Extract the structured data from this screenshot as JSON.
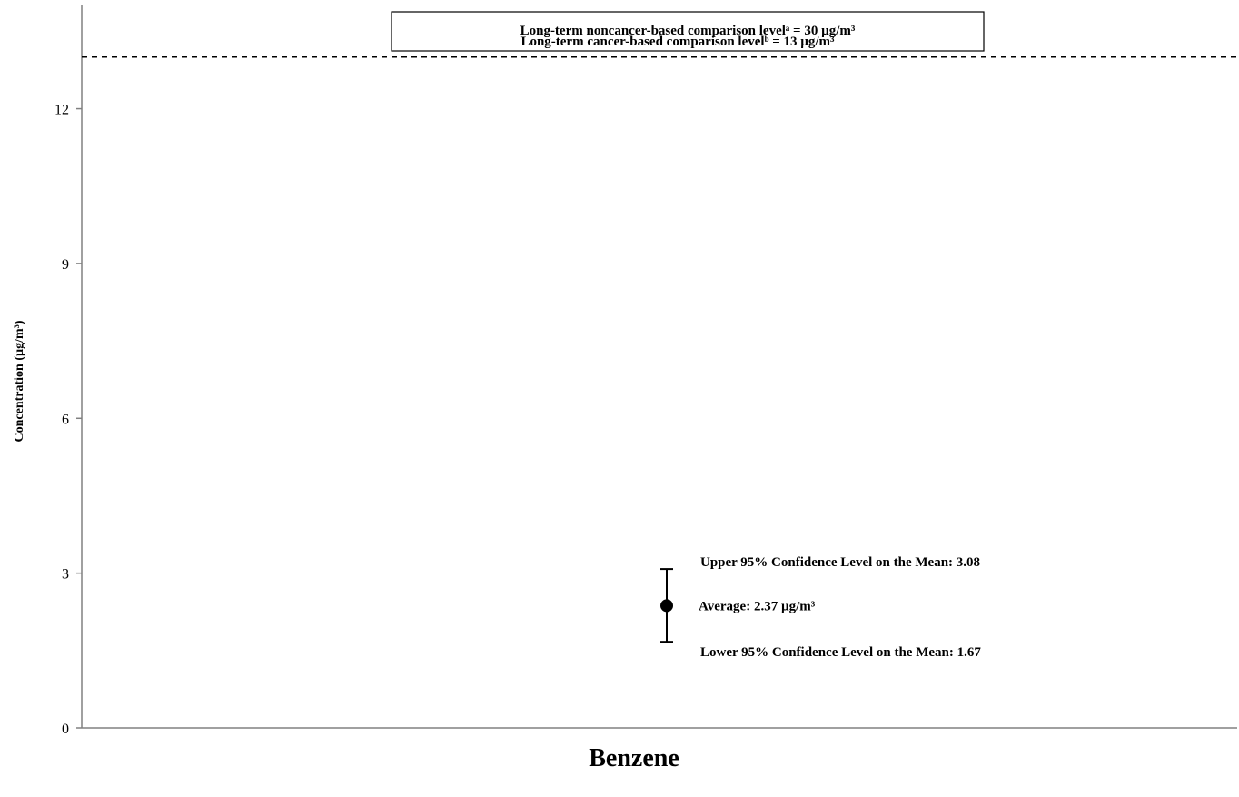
{
  "chart_data": {
    "type": "scatter",
    "title": "",
    "xlabel": "Benzene",
    "ylabel": "Concentration (µg/m³)",
    "ylim": [
      0,
      14
    ],
    "yticks": [
      0,
      3,
      6,
      9,
      12
    ],
    "grid": false,
    "legend": "none",
    "colors": {
      "axis": "#808080",
      "marker": "#000000",
      "reference_line": "#000000"
    },
    "series": [
      {
        "category": "Benzene",
        "mean": 2.37,
        "upper_ci": 3.08,
        "lower_ci": 1.67
      }
    ],
    "reference_lines": [
      {
        "value": 13,
        "style": "dashed",
        "label": "Long-term cancer-based comparison levelᵇ = 13 µg/m³"
      }
    ],
    "off_scale_reference": {
      "value": 30,
      "label": "Long-term  noncancer-based comparison levelᵃ = 30 µg/m³"
    },
    "annotations": {
      "upper": "Upper 95% Confidence Level on the Mean: 3.08",
      "average": "Average:  2.37 µg/m³",
      "lower": "Lower 95% Confidence Level on the Mean: 1.67"
    }
  }
}
